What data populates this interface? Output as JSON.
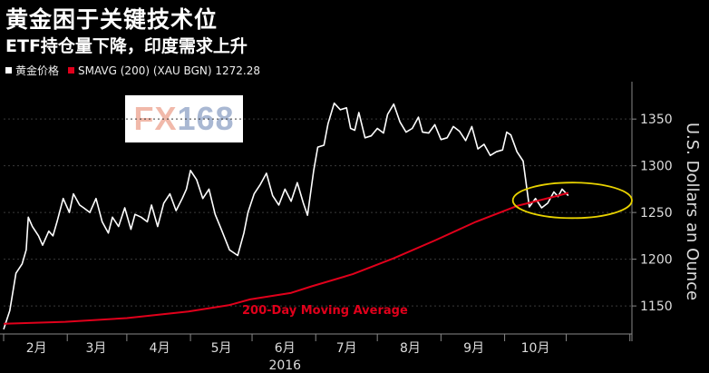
{
  "header": {
    "title": "黄金困于关键技术位",
    "subtitle": "ETF持仓量下降，印度需求上升"
  },
  "legend": {
    "gold_label": "黄金价格",
    "sma_label": "SMAVG (200)  (XAU BGN) 1272.28"
  },
  "logo": {
    "fx": "FX",
    "num": "168"
  },
  "colors": {
    "gold": "#ffffff",
    "sma": "#e0001b",
    "highlight": "#e8d200",
    "background": "#000000"
  },
  "chart_data": {
    "type": "line",
    "title": "黄金困于关键技术位",
    "subtitle": "ETF持仓量下降，印度需求上升",
    "ylabel": "U.S. Dollars an Ounce",
    "ylim": [
      1120,
      1390
    ],
    "yticks": [
      1150,
      1200,
      1250,
      1300,
      1350
    ],
    "x_range_days": [
      0,
      306
    ],
    "month_labels": [
      "2月",
      "3月",
      "4月",
      "5月",
      "6月",
      "7月",
      "8月",
      "9月",
      "10月"
    ],
    "month_label_days": [
      16,
      45,
      76,
      106,
      137,
      167,
      198,
      229,
      259
    ],
    "month_boundary_days": [
      0,
      31,
      60,
      91,
      121,
      152,
      182,
      213,
      244,
      274,
      305
    ],
    "year_label": "2016",
    "annotation": "200-Day Moving Average",
    "highlight_ellipse": {
      "x_center": 277,
      "y_center": 1263,
      "x_halfwidth": 29,
      "y_halfwidth": 19
    },
    "series": [
      {
        "name": "黄金价格",
        "x": [
          0,
          3,
          6,
          9,
          11,
          12,
          14,
          17,
          19,
          22,
          24,
          26,
          29,
          32,
          34,
          37,
          39,
          42,
          45,
          48,
          51,
          53,
          56,
          59,
          62,
          64,
          67,
          70,
          72,
          75,
          78,
          81,
          84,
          87,
          89,
          91,
          94,
          97,
          100,
          103,
          106,
          110,
          114,
          117,
          119,
          122,
          125,
          128,
          131,
          134,
          137,
          140,
          143,
          146,
          148,
          151,
          153,
          156,
          158,
          161,
          164,
          167,
          169,
          171,
          173,
          176,
          179,
          182,
          185,
          187,
          190,
          193,
          196,
          199,
          202,
          204,
          207,
          210,
          213,
          216,
          219,
          222,
          225,
          228,
          231,
          234,
          237,
          240,
          243,
          245,
          247,
          250,
          253,
          256,
          259,
          262,
          265,
          268,
          270,
          272,
          275
        ],
        "values": [
          1125,
          1145,
          1185,
          1195,
          1210,
          1245,
          1235,
          1225,
          1215,
          1230,
          1225,
          1240,
          1265,
          1250,
          1270,
          1258,
          1255,
          1250,
          1265,
          1240,
          1228,
          1245,
          1235,
          1255,
          1232,
          1248,
          1245,
          1240,
          1258,
          1235,
          1260,
          1270,
          1252,
          1265,
          1275,
          1295,
          1285,
          1265,
          1275,
          1248,
          1232,
          1210,
          1204,
          1228,
          1250,
          1270,
          1280,
          1292,
          1268,
          1258,
          1275,
          1262,
          1282,
          1260,
          1247,
          1295,
          1320,
          1322,
          1345,
          1367,
          1360,
          1362,
          1340,
          1338,
          1357,
          1330,
          1332,
          1340,
          1335,
          1355,
          1366,
          1347,
          1336,
          1340,
          1352,
          1336,
          1335,
          1344,
          1328,
          1330,
          1342,
          1337,
          1327,
          1342,
          1318,
          1323,
          1311,
          1315,
          1317,
          1336,
          1333,
          1315,
          1305,
          1256,
          1265,
          1255,
          1260,
          1272,
          1267,
          1275,
          1268
        ]
      },
      {
        "name": "SMAVG (200)  (XAU BGN) 1272.28",
        "x": [
          0,
          30,
          60,
          90,
          110,
          120,
          140,
          150,
          170,
          190,
          210,
          230,
          250,
          270,
          275
        ],
        "values": [
          1131,
          1133,
          1137,
          1144,
          1151,
          1157,
          1164,
          1171,
          1184,
          1201,
          1220,
          1240,
          1257,
          1268,
          1271
        ]
      }
    ]
  }
}
